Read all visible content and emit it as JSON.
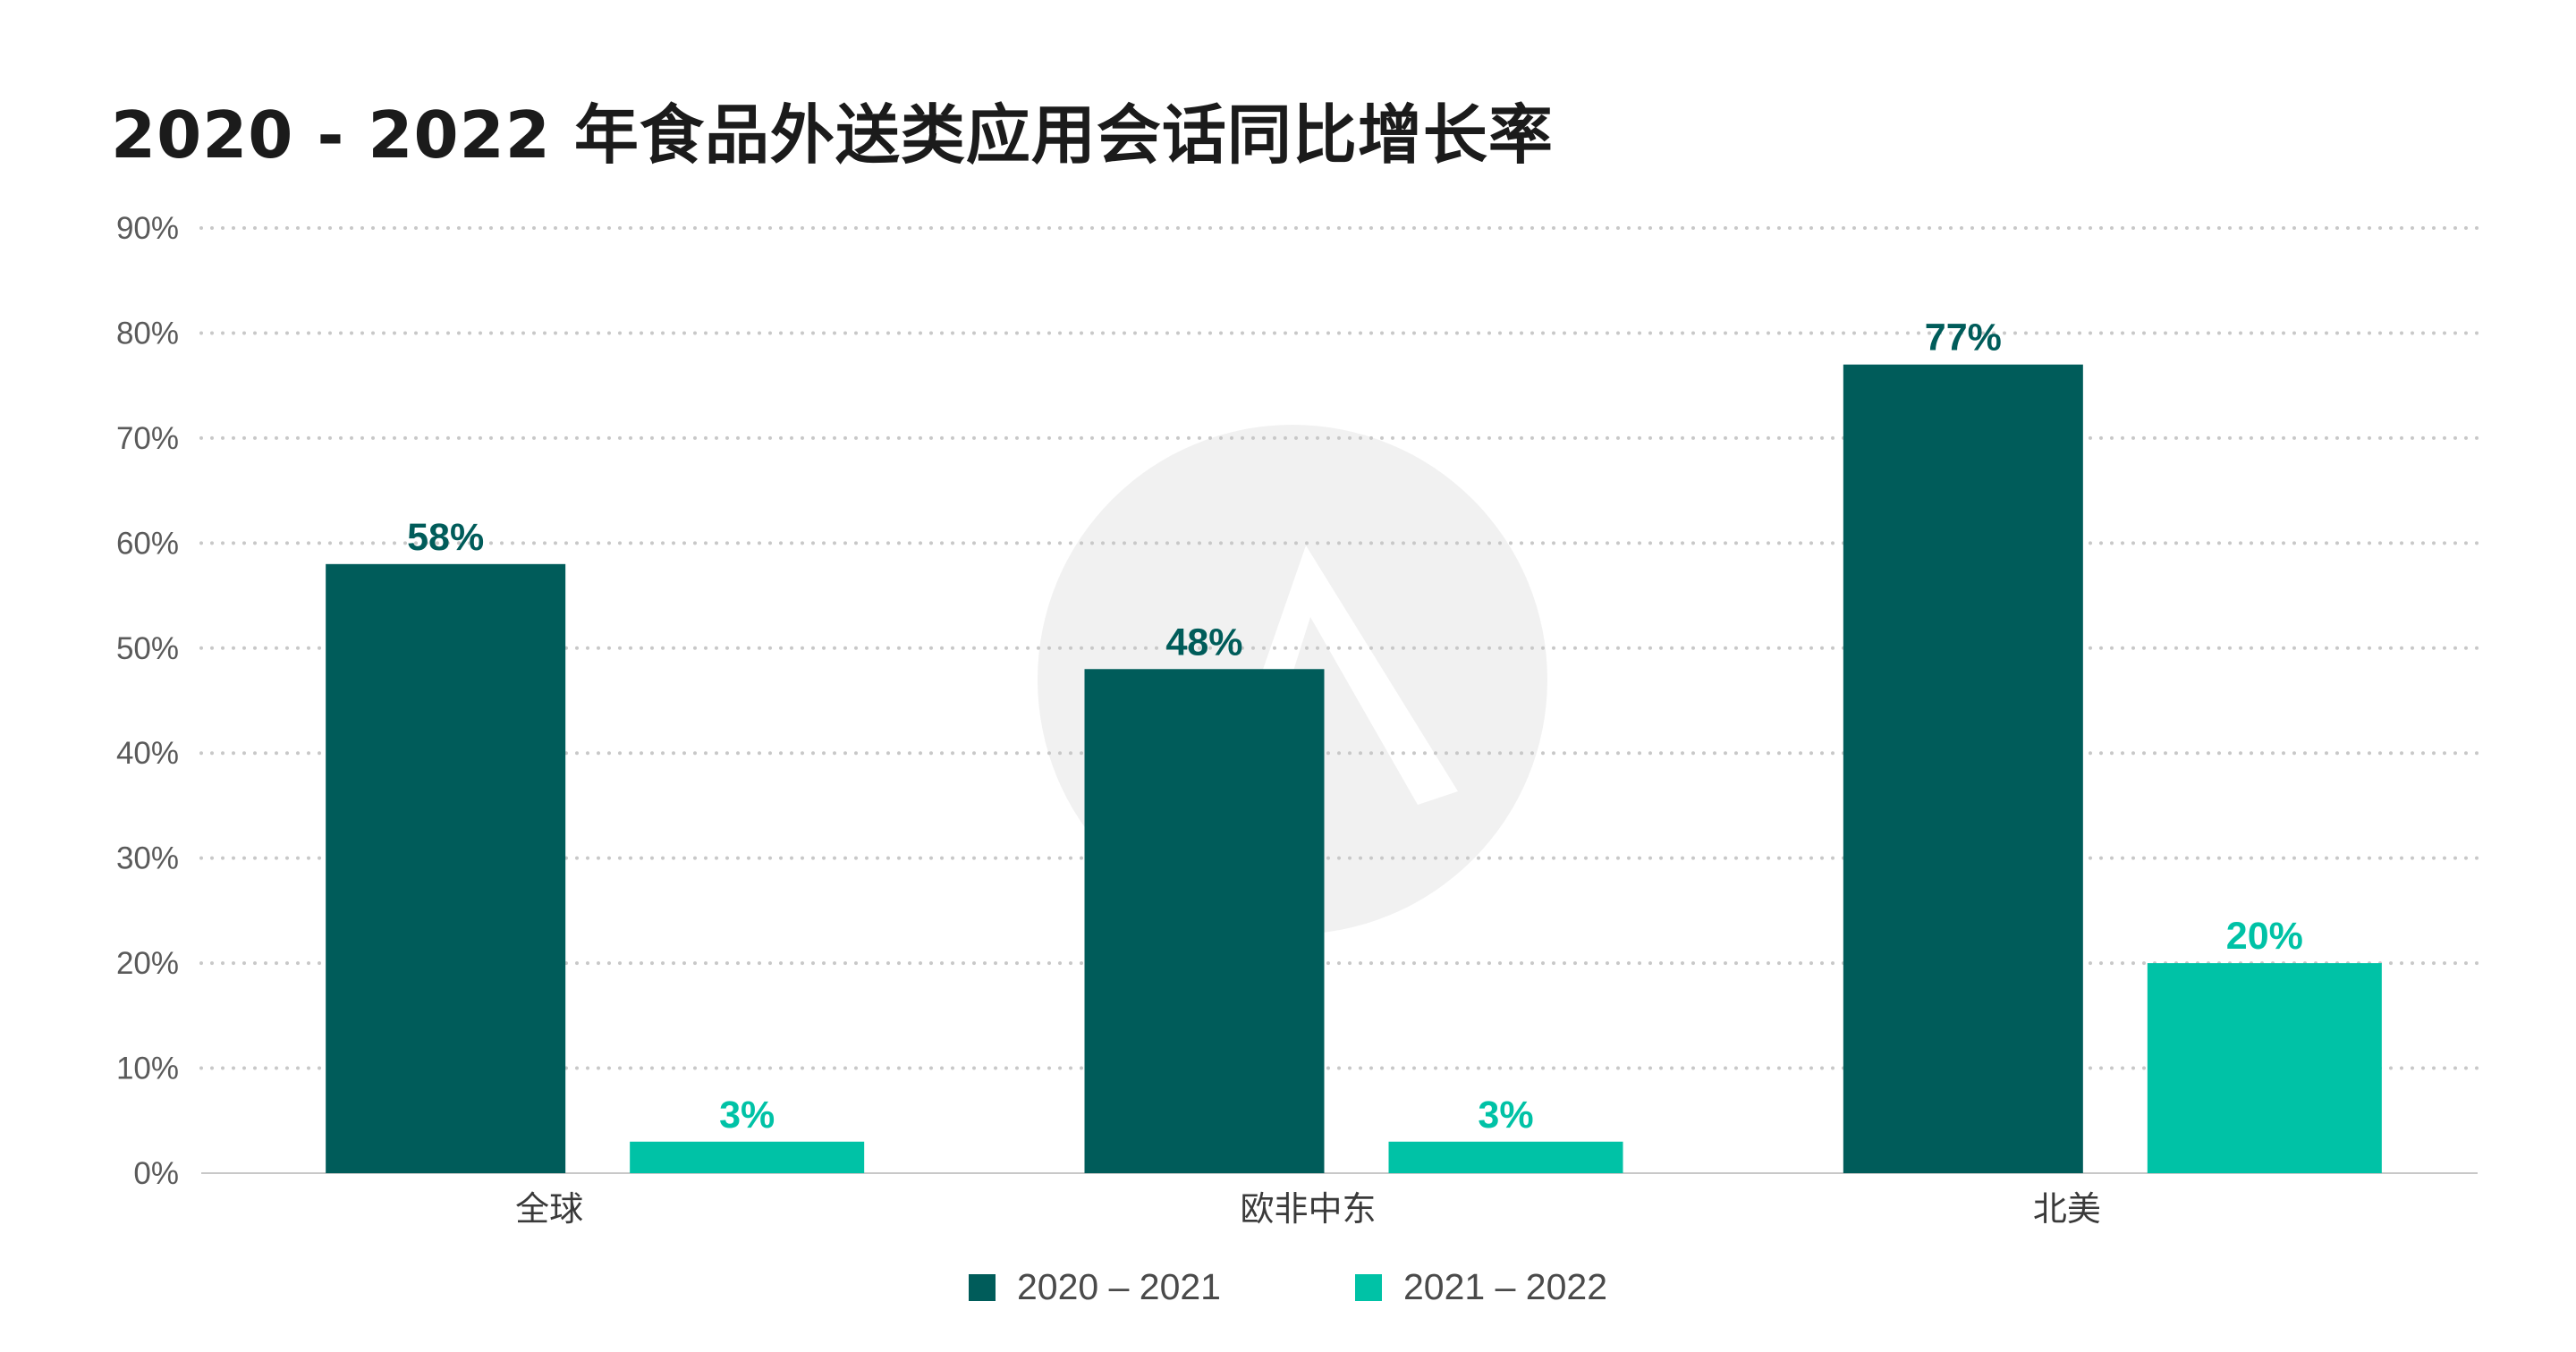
{
  "title": "2020 - 2022 年食品外送类应用会话同比增长率",
  "colors": {
    "series1": "#005c5a",
    "series2": "#00c2a6",
    "grid": "#c8c8c8",
    "watermark": "#f1f1f1"
  },
  "chart_data": {
    "type": "bar",
    "title": "2020 - 2022 年食品外送类应用会话同比增长率",
    "categories": [
      "全球",
      "欧非中东",
      "北美"
    ],
    "series": [
      {
        "name": "2020 – 2021",
        "values": [
          58,
          48,
          77
        ],
        "labels": [
          "58%",
          "48%",
          "77%"
        ]
      },
      {
        "name": "2021 – 2022",
        "values": [
          3,
          3,
          20
        ],
        "labels": [
          "3%",
          "3%",
          "20%"
        ]
      }
    ],
    "ylim": [
      0,
      90
    ],
    "yticks": [
      "0%",
      "10%",
      "20%",
      "30%",
      "40%",
      "50%",
      "60%",
      "70%",
      "80%",
      "90%"
    ],
    "grid": true,
    "legend": "bottom-center",
    "xlabel": "",
    "ylabel": ""
  }
}
